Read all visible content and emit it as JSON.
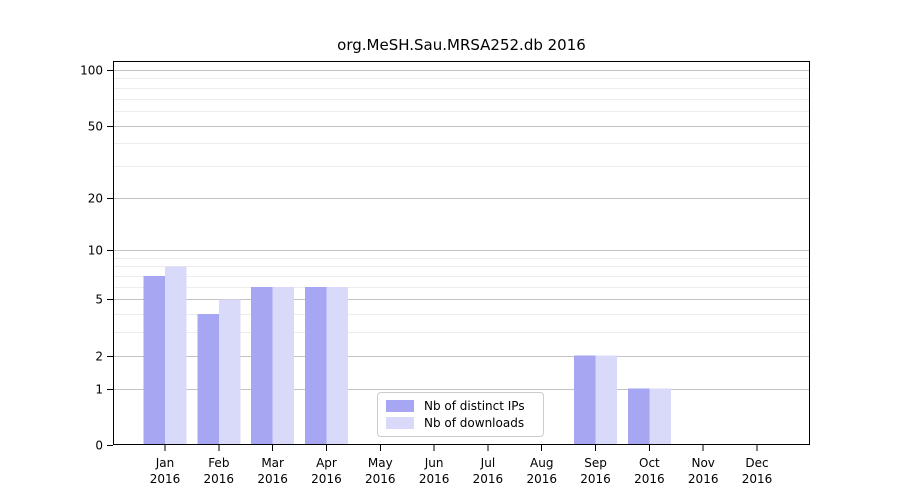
{
  "chart_data": {
    "type": "bar",
    "title": "org.MeSH.Sau.MRSA252.db 2016",
    "xlabel": "",
    "ylabel": "",
    "categories": [
      "Jan 2016",
      "Feb 2016",
      "Mar 2016",
      "Apr 2016",
      "May 2016",
      "Jun 2016",
      "Jul 2016",
      "Aug 2016",
      "Sep 2016",
      "Oct 2016",
      "Nov 2016",
      "Dec 2016"
    ],
    "x_tick_labels": [
      [
        "Jan",
        "2016"
      ],
      [
        "Feb",
        "2016"
      ],
      [
        "Mar",
        "2016"
      ],
      [
        "Apr",
        "2016"
      ],
      [
        "May",
        "2016"
      ],
      [
        "Jun",
        "2016"
      ],
      [
        "Jul",
        "2016"
      ],
      [
        "Aug",
        "2016"
      ],
      [
        "Sep",
        "2016"
      ],
      [
        "Oct",
        "2016"
      ],
      [
        "Nov",
        "2016"
      ],
      [
        "Dec",
        "2016"
      ]
    ],
    "series": [
      {
        "name": "Nb of distinct IPs",
        "color": "#a6a6f2",
        "values": [
          7,
          4,
          6,
          6,
          0,
          0,
          0,
          0,
          2,
          1,
          0,
          0
        ]
      },
      {
        "name": "Nb of downloads",
        "color": "#d9d9fa",
        "values": [
          8,
          5,
          6,
          6,
          0,
          0,
          0,
          0,
          2,
          1,
          0,
          0
        ]
      }
    ],
    "y_scale": "log10(1+x)",
    "y_ticks": [
      0,
      1,
      2,
      5,
      10,
      20,
      50,
      100
    ],
    "y_minor_gridlines": [
      3,
      4,
      6,
      7,
      8,
      9,
      30,
      40,
      60,
      70,
      80,
      90
    ],
    "ylim": [
      0,
      112
    ],
    "grid": true,
    "legend_position": "lower center"
  },
  "colors": {
    "background": "#ffffff",
    "axis": "#000000",
    "text": "#000000",
    "major_grid": "#c3c3c3",
    "minor_grid": "#ececec",
    "legend_border": "#cccccc"
  }
}
